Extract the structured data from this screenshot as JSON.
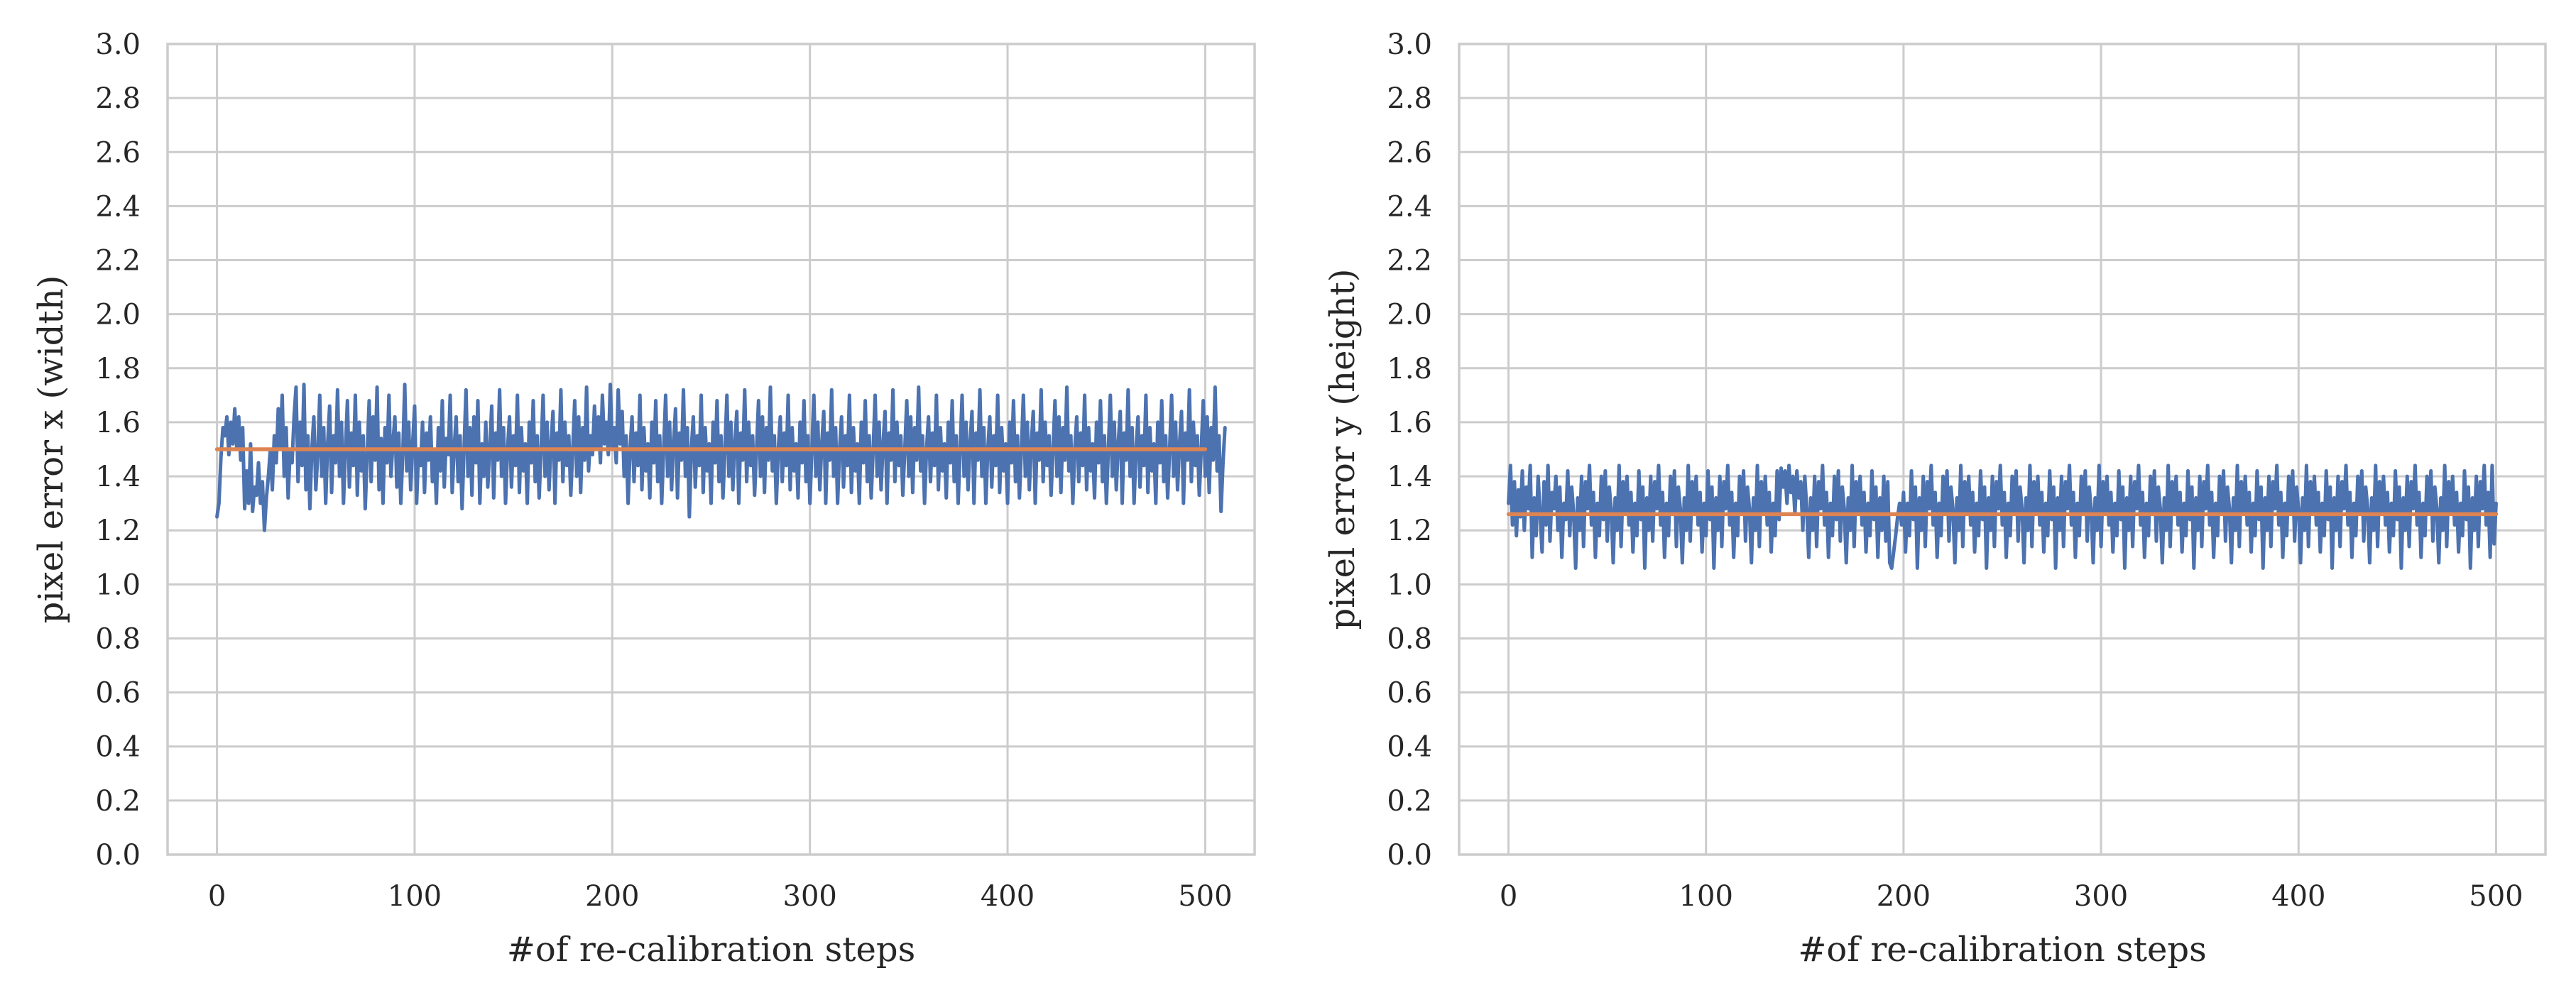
{
  "chart_data": [
    {
      "type": "line",
      "title": "",
      "xlabel": "#of re-calibration steps",
      "ylabel": "pixel error x (width)",
      "xlim": [
        -25,
        525
      ],
      "ylim": [
        0.0,
        3.0
      ],
      "xticks": [
        "0",
        "100",
        "200",
        "300",
        "400",
        "500"
      ],
      "yticks": [
        "0.0",
        "0.2",
        "0.4",
        "0.6",
        "0.8",
        "1.0",
        "1.2",
        "1.4",
        "1.6",
        "1.8",
        "2.0",
        "2.2",
        "2.4",
        "2.6",
        "2.8",
        "3.0"
      ],
      "grid": true,
      "legend": "none",
      "series": [
        {
          "color": "#4c72b0",
          "x_start": 0,
          "x_step": 1,
          "values": [
            1.25,
            1.3,
            1.47,
            1.58,
            1.55,
            1.62,
            1.48,
            1.6,
            1.52,
            1.65,
            1.5,
            1.62,
            1.46,
            1.58,
            1.28,
            1.42,
            1.3,
            1.52,
            1.27,
            1.36,
            1.33,
            1.45,
            1.3,
            1.38,
            1.2,
            1.32,
            1.4,
            1.5,
            1.35,
            1.55,
            1.45,
            1.65,
            1.5,
            1.7,
            1.4,
            1.58,
            1.32,
            1.5,
            1.45,
            1.62,
            1.73,
            1.38,
            1.6,
            1.44,
            1.74,
            1.35,
            1.55,
            1.28,
            1.5,
            1.62,
            1.35,
            1.48,
            1.7,
            1.4,
            1.58,
            1.3,
            1.52,
            1.66,
            1.34,
            1.55,
            1.45,
            1.72,
            1.4,
            1.6,
            1.3,
            1.5,
            1.68,
            1.36,
            1.56,
            1.44,
            1.7,
            1.33,
            1.6,
            1.42,
            1.55,
            1.28,
            1.48,
            1.68,
            1.38,
            1.62,
            1.46,
            1.73,
            1.35,
            1.54,
            1.3,
            1.58,
            1.45,
            1.7,
            1.4,
            1.52,
            1.62,
            1.36,
            1.56,
            1.3,
            1.48,
            1.74,
            1.42,
            1.6,
            1.35,
            1.52,
            1.66,
            1.3,
            1.5,
            1.44,
            1.6,
            1.34,
            1.56,
            1.46,
            1.62,
            1.38,
            1.5,
            1.3,
            1.58,
            1.42,
            1.68,
            1.36,
            1.54,
            1.48,
            1.7,
            1.34,
            1.5,
            1.62,
            1.38,
            1.55,
            1.28,
            1.5,
            1.72,
            1.4,
            1.58,
            1.33,
            1.62,
            1.45,
            1.68,
            1.3,
            1.52,
            1.4,
            1.6,
            1.36,
            1.5,
            1.66,
            1.32,
            1.56,
            1.46,
            1.72,
            1.4,
            1.58,
            1.3,
            1.5,
            1.62,
            1.36,
            1.55,
            1.44,
            1.7,
            1.34,
            1.58,
            1.42,
            1.52,
            1.3,
            1.6,
            1.45,
            1.68,
            1.38,
            1.55,
            1.32,
            1.5,
            1.7,
            1.4,
            1.6,
            1.35,
            1.52,
            1.64,
            1.3,
            1.56,
            1.46,
            1.72,
            1.38,
            1.6,
            1.44,
            1.55,
            1.33,
            1.5,
            1.68,
            1.4,
            1.62,
            1.34,
            1.58,
            1.46,
            1.73,
            1.42,
            1.55,
            1.48,
            1.66,
            1.5,
            1.62,
            1.45,
            1.7,
            1.52,
            1.6,
            1.48,
            1.74,
            1.5,
            1.58,
            1.45,
            1.72,
            1.52,
            1.64,
            1.4,
            1.55,
            1.3,
            1.5,
            1.62,
            1.38,
            1.56,
            1.44,
            1.7,
            1.35,
            1.58,
            1.42,
            1.52,
            1.32,
            1.6,
            1.45,
            1.68,
            1.38,
            1.55,
            1.3,
            1.5,
            1.7,
            1.4,
            1.6,
            1.35,
            1.52,
            1.65,
            1.32,
            1.56,
            1.46,
            1.72,
            1.4,
            1.58,
            1.25,
            1.5,
            1.62,
            1.36,
            1.55,
            1.44,
            1.7,
            1.34,
            1.58,
            1.42,
            1.52,
            1.3,
            1.6,
            1.45,
            1.68,
            1.38,
            1.55,
            1.32,
            1.5,
            1.7,
            1.4,
            1.6,
            1.35,
            1.52,
            1.64,
            1.3,
            1.56,
            1.46,
            1.72,
            1.38,
            1.6,
            1.44,
            1.55,
            1.33,
            1.5,
            1.68,
            1.4,
            1.62,
            1.34,
            1.58,
            1.46,
            1.73,
            1.42,
            1.55,
            1.3,
            1.5,
            1.62,
            1.38,
            1.56,
            1.44,
            1.7,
            1.35,
            1.58,
            1.42,
            1.52,
            1.32,
            1.6,
            1.45,
            1.68,
            1.38,
            1.55,
            1.3,
            1.5,
            1.7,
            1.4,
            1.6,
            1.35,
            1.52,
            1.64,
            1.3,
            1.56,
            1.46,
            1.72,
            1.4,
            1.58,
            1.3,
            1.5,
            1.62,
            1.36,
            1.55,
            1.44,
            1.7,
            1.34,
            1.58,
            1.42,
            1.52,
            1.3,
            1.6,
            1.45,
            1.68,
            1.38,
            1.55,
            1.32,
            1.5,
            1.7,
            1.4,
            1.6,
            1.35,
            1.52,
            1.64,
            1.3,
            1.56,
            1.46,
            1.72,
            1.38,
            1.6,
            1.44,
            1.55,
            1.33,
            1.5,
            1.68,
            1.4,
            1.62,
            1.34,
            1.58,
            1.46,
            1.73,
            1.42,
            1.55,
            1.3,
            1.5,
            1.62,
            1.38,
            1.56,
            1.44,
            1.7,
            1.35,
            1.58,
            1.42,
            1.52,
            1.32,
            1.6,
            1.45,
            1.68,
            1.38,
            1.55,
            1.3,
            1.5,
            1.7,
            1.4,
            1.6,
            1.35,
            1.52,
            1.64,
            1.3,
            1.56,
            1.46,
            1.72,
            1.4,
            1.58,
            1.3,
            1.5,
            1.62,
            1.36,
            1.55,
            1.44,
            1.7,
            1.34,
            1.58,
            1.42,
            1.52,
            1.3,
            1.6,
            1.45,
            1.68,
            1.38,
            1.55,
            1.32,
            1.5,
            1.7,
            1.4,
            1.6,
            1.35,
            1.52,
            1.64,
            1.3,
            1.56,
            1.46,
            1.72,
            1.38,
            1.6,
            1.44,
            1.55,
            1.33,
            1.5,
            1.68,
            1.4,
            1.62,
            1.34,
            1.58,
            1.46,
            1.73,
            1.42,
            1.55,
            1.3,
            1.5,
            1.62,
            1.38,
            1.56,
            1.44,
            1.7,
            1.35,
            1.58,
            1.42,
            1.52,
            1.32,
            1.6,
            1.45,
            1.68,
            1.38,
            1.55,
            1.3,
            1.5,
            1.7,
            1.4,
            1.6,
            1.35,
            1.52,
            1.64,
            1.3,
            1.56,
            1.46,
            1.72,
            1.4,
            1.58,
            1.3,
            1.5,
            1.62,
            1.36,
            1.55,
            1.44,
            1.7,
            1.34,
            1.58,
            1.42,
            1.52,
            1.3,
            1.6,
            1.45,
            1.68,
            1.38,
            1.55,
            1.32,
            1.5,
            1.7,
            1.4,
            1.6,
            1.35,
            1.52,
            1.64,
            1.3,
            1.56,
            1.46,
            1.72,
            1.38,
            1.6,
            1.44,
            1.55,
            1.33,
            1.5,
            1.68,
            1.4,
            1.62,
            1.34,
            1.58,
            1.46,
            1.73,
            1.42,
            1.55,
            1.27,
            1.45,
            1.58
          ]
        },
        {
          "color": "#dd8452",
          "x": [
            0,
            500
          ],
          "values": [
            1.5,
            1.5
          ]
        }
      ]
    },
    {
      "type": "line",
      "title": "",
      "xlabel": "#of re-calibration steps",
      "ylabel": "pixel error y (height)",
      "xlim": [
        -25,
        525
      ],
      "ylim": [
        0.0,
        3.0
      ],
      "xticks": [
        "0",
        "100",
        "200",
        "300",
        "400",
        "500"
      ],
      "yticks": [
        "0.0",
        "0.2",
        "0.4",
        "0.6",
        "0.8",
        "1.0",
        "1.2",
        "1.4",
        "1.6",
        "1.8",
        "2.0",
        "2.2",
        "2.4",
        "2.6",
        "2.8",
        "3.0"
      ],
      "grid": true,
      "legend": "none",
      "series": [
        {
          "color": "#4c72b0",
          "x_start": 0,
          "x_step": 1,
          "values": [
            1.3,
            1.44,
            1.22,
            1.38,
            1.18,
            1.35,
            1.25,
            1.42,
            1.2,
            1.36,
            1.28,
            1.44,
            1.1,
            1.32,
            1.18,
            1.4,
            1.26,
            1.12,
            1.38,
            1.22,
            1.44,
            1.16,
            1.34,
            1.28,
            1.4,
            1.2,
            1.36,
            1.1,
            1.3,
            1.24,
            1.42,
            1.18,
            1.36,
            1.26,
            1.06,
            1.32,
            1.2,
            1.4,
            1.14,
            1.38,
            1.28,
            1.44,
            1.22,
            1.34,
            1.1,
            1.3,
            1.18,
            1.4,
            1.24,
            1.42,
            1.16,
            1.36,
            1.28,
            1.08,
            1.32,
            1.2,
            1.44,
            1.14,
            1.38,
            1.26,
            1.4,
            1.22,
            1.34,
            1.12,
            1.3,
            1.18,
            1.42,
            1.24,
            1.36,
            1.06,
            1.32,
            1.2,
            1.4,
            1.16,
            1.38,
            1.28,
            1.44,
            1.22,
            1.34,
            1.1,
            1.3,
            1.18,
            1.4,
            1.26,
            1.42,
            1.14,
            1.36,
            1.28,
            1.08,
            1.32,
            1.2,
            1.44,
            1.16,
            1.38,
            1.26,
            1.4,
            1.22,
            1.34,
            1.12,
            1.3,
            1.18,
            1.42,
            1.24,
            1.36,
            1.06,
            1.32,
            1.2,
            1.4,
            1.14,
            1.38,
            1.28,
            1.44,
            1.22,
            1.34,
            1.1,
            1.3,
            1.18,
            1.4,
            1.26,
            1.42,
            1.16,
            1.36,
            1.28,
            1.08,
            1.32,
            1.2,
            1.44,
            1.14,
            1.38,
            1.26,
            1.4,
            1.22,
            1.34,
            1.12,
            1.3,
            1.18,
            1.42,
            1.24,
            1.43,
            1.36,
            1.42,
            1.3,
            1.44,
            1.34,
            1.4,
            1.26,
            1.42,
            1.32,
            1.38,
            1.2,
            1.4,
            1.28,
            1.1,
            1.32,
            1.2,
            1.4,
            1.14,
            1.38,
            1.28,
            1.44,
            1.22,
            1.34,
            1.1,
            1.3,
            1.18,
            1.4,
            1.24,
            1.42,
            1.16,
            1.36,
            1.28,
            1.08,
            1.32,
            1.2,
            1.44,
            1.14,
            1.38,
            1.26,
            1.4,
            1.22,
            1.34,
            1.12,
            1.3,
            1.18,
            1.42,
            1.24,
            1.36,
            1.1,
            1.32,
            1.2,
            1.4,
            1.16,
            1.38,
            1.08,
            1.06,
            1.12,
            1.18,
            1.25,
            1.3,
            1.22,
            1.34,
            1.12,
            1.3,
            1.18,
            1.42,
            1.24,
            1.36,
            1.06,
            1.32,
            1.2,
            1.4,
            1.14,
            1.38,
            1.28,
            1.44,
            1.22,
            1.34,
            1.1,
            1.3,
            1.18,
            1.4,
            1.26,
            1.42,
            1.16,
            1.36,
            1.28,
            1.08,
            1.32,
            1.2,
            1.44,
            1.14,
            1.38,
            1.26,
            1.4,
            1.22,
            1.34,
            1.12,
            1.3,
            1.18,
            1.42,
            1.24,
            1.36,
            1.06,
            1.32,
            1.2,
            1.4,
            1.14,
            1.38,
            1.28,
            1.44,
            1.22,
            1.34,
            1.1,
            1.3,
            1.18,
            1.4,
            1.26,
            1.42,
            1.16,
            1.36,
            1.28,
            1.08,
            1.32,
            1.2,
            1.44,
            1.14,
            1.38,
            1.26,
            1.4,
            1.22,
            1.34,
            1.12,
            1.3,
            1.18,
            1.42,
            1.24,
            1.36,
            1.06,
            1.32,
            1.2,
            1.4,
            1.14,
            1.38,
            1.28,
            1.44,
            1.22,
            1.34,
            1.1,
            1.3,
            1.18,
            1.4,
            1.26,
            1.42,
            1.16,
            1.36,
            1.28,
            1.08,
            1.32,
            1.2,
            1.44,
            1.14,
            1.38,
            1.26,
            1.4,
            1.22,
            1.34,
            1.12,
            1.3,
            1.18,
            1.42,
            1.24,
            1.36,
            1.06,
            1.32,
            1.2,
            1.4,
            1.14,
            1.38,
            1.28,
            1.44,
            1.22,
            1.34,
            1.1,
            1.3,
            1.18,
            1.4,
            1.26,
            1.42,
            1.16,
            1.36,
            1.28,
            1.08,
            1.32,
            1.2,
            1.44,
            1.14,
            1.38,
            1.26,
            1.4,
            1.22,
            1.34,
            1.12,
            1.3,
            1.18,
            1.42,
            1.24,
            1.36,
            1.06,
            1.32,
            1.2,
            1.4,
            1.14,
            1.38,
            1.28,
            1.44,
            1.22,
            1.34,
            1.1,
            1.3,
            1.18,
            1.4,
            1.26,
            1.42,
            1.16,
            1.36,
            1.28,
            1.08,
            1.32,
            1.2,
            1.44,
            1.14,
            1.38,
            1.26,
            1.4,
            1.22,
            1.34,
            1.12,
            1.3,
            1.18,
            1.42,
            1.24,
            1.36,
            1.06,
            1.32,
            1.2,
            1.4,
            1.14,
            1.38,
            1.28,
            1.44,
            1.22,
            1.34,
            1.1,
            1.3,
            1.18,
            1.4,
            1.26,
            1.42,
            1.16,
            1.36,
            1.28,
            1.08,
            1.32,
            1.2,
            1.44,
            1.14,
            1.38,
            1.26,
            1.4,
            1.22,
            1.34,
            1.12,
            1.3,
            1.18,
            1.42,
            1.24,
            1.36,
            1.06,
            1.32,
            1.2,
            1.4,
            1.14,
            1.38,
            1.28,
            1.44,
            1.22,
            1.34,
            1.1,
            1.3,
            1.18,
            1.4,
            1.26,
            1.42,
            1.16,
            1.36,
            1.28,
            1.08,
            1.32,
            1.2,
            1.44,
            1.14,
            1.38,
            1.26,
            1.4,
            1.22,
            1.34,
            1.12,
            1.3,
            1.18,
            1.42,
            1.24,
            1.36,
            1.06,
            1.32,
            1.2,
            1.4,
            1.14,
            1.38,
            1.28,
            1.44,
            1.22,
            1.34,
            1.1,
            1.3,
            1.18,
            1.4,
            1.26,
            1.42,
            1.16,
            1.36,
            1.28,
            1.08,
            1.32,
            1.2,
            1.44,
            1.14,
            1.38,
            1.26,
            1.4,
            1.22,
            1.34,
            1.12,
            1.3,
            1.18,
            1.42,
            1.24,
            1.36,
            1.06,
            1.32,
            1.2,
            1.4,
            1.14,
            1.38,
            1.28,
            1.44,
            1.22,
            1.34,
            1.1,
            1.44,
            1.15,
            1.3
          ]
        },
        {
          "color": "#dd8452",
          "x": [
            0,
            500
          ],
          "values": [
            1.26,
            1.26
          ]
        }
      ]
    }
  ]
}
